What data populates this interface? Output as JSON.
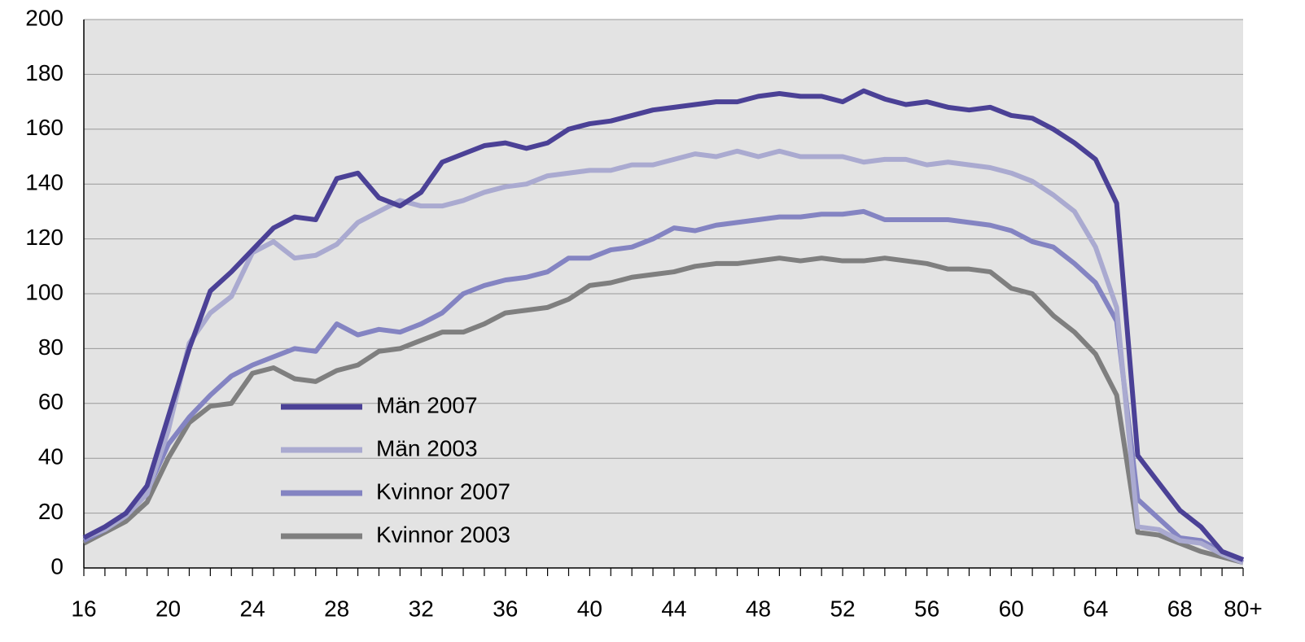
{
  "chart_data": {
    "type": "line",
    "categories": [
      "16",
      null,
      null,
      null,
      "20",
      null,
      null,
      null,
      "24",
      null,
      null,
      null,
      "28",
      null,
      null,
      null,
      "32",
      null,
      null,
      null,
      "36",
      null,
      null,
      null,
      "40",
      null,
      null,
      null,
      "44",
      null,
      null,
      null,
      "48",
      null,
      null,
      null,
      "52",
      null,
      null,
      null,
      "56",
      null,
      null,
      null,
      "60",
      null,
      null,
      null,
      "64",
      null,
      null,
      null,
      "68",
      null,
      null,
      "80+"
    ],
    "ylim": [
      0,
      200
    ],
    "yticks": [
      0,
      20,
      40,
      60,
      80,
      100,
      120,
      140,
      160,
      180,
      200
    ],
    "grid": true,
    "series": [
      {
        "name": "Män 2007",
        "color": "#4b4196",
        "values": [
          11,
          15,
          20,
          30,
          55,
          80,
          101,
          108,
          116,
          124,
          128,
          127,
          142,
          144,
          135,
          132,
          137,
          148,
          151,
          154,
          155,
          153,
          155,
          160,
          162,
          163,
          165,
          167,
          168,
          169,
          170,
          170,
          172,
          173,
          172,
          172,
          170,
          174,
          171,
          169,
          170,
          168,
          167,
          168,
          165,
          164,
          160,
          155,
          149,
          133,
          41,
          31,
          21,
          15,
          6,
          3
        ]
      },
      {
        "name": "Män 2003",
        "color": "#aaaad0",
        "values": [
          11,
          14,
          19,
          27,
          50,
          82,
          93,
          99,
          115,
          119,
          113,
          114,
          118,
          126,
          130,
          134,
          132,
          132,
          134,
          137,
          139,
          140,
          143,
          144,
          145,
          145,
          147,
          147,
          149,
          151,
          150,
          152,
          150,
          152,
          150,
          150,
          150,
          148,
          149,
          149,
          147,
          148,
          147,
          146,
          144,
          141,
          136,
          130,
          117,
          95,
          15,
          14,
          10,
          9,
          5,
          2
        ]
      },
      {
        "name": "Kvinnor 2007",
        "color": "#8484c2",
        "values": [
          10,
          14,
          19,
          28,
          45,
          55,
          63,
          70,
          74,
          77,
          80,
          79,
          89,
          85,
          87,
          86,
          89,
          93,
          100,
          103,
          105,
          106,
          108,
          113,
          113,
          116,
          117,
          120,
          124,
          123,
          125,
          126,
          127,
          128,
          128,
          129,
          129,
          130,
          127,
          127,
          127,
          127,
          126,
          125,
          123,
          119,
          117,
          111,
          104,
          90,
          25,
          18,
          11,
          10,
          6,
          3
        ]
      },
      {
        "name": "Kvinnor 2003",
        "color": "#7f7f7f",
        "values": [
          9,
          13,
          17,
          24,
          40,
          53,
          59,
          60,
          71,
          73,
          69,
          68,
          72,
          74,
          79,
          80,
          83,
          86,
          86,
          89,
          93,
          94,
          95,
          98,
          103,
          104,
          106,
          107,
          108,
          110,
          111,
          111,
          112,
          113,
          112,
          113,
          112,
          112,
          113,
          112,
          111,
          109,
          109,
          108,
          102,
          100,
          92,
          86,
          78,
          63,
          13,
          12,
          9,
          6,
          4,
          2
        ]
      }
    ]
  }
}
